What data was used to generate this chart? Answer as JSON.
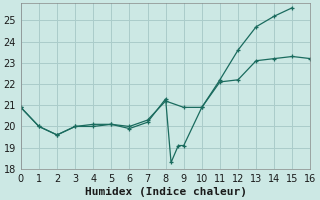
{
  "xlabel": "Humidex (Indice chaleur)",
  "background_color": "#cce8e4",
  "grid_color": "#aaccca",
  "line_color": "#1a6b5e",
  "line1_x": [
    0,
    1,
    2,
    3,
    4,
    5,
    6,
    7,
    8,
    8.3,
    8.7,
    9,
    10,
    11,
    12,
    13,
    14,
    15,
    16
  ],
  "line1_y": [
    20.9,
    20.0,
    19.6,
    20.0,
    20.0,
    20.1,
    19.9,
    20.2,
    21.3,
    18.3,
    19.1,
    19.1,
    20.9,
    22.1,
    22.2,
    23.1,
    23.2,
    23.3,
    23.2
  ],
  "line2_x": [
    0,
    1,
    2,
    3,
    4,
    5,
    6,
    7,
    8,
    9,
    10,
    11,
    12,
    13,
    14,
    15
  ],
  "line2_y": [
    20.9,
    20.0,
    19.6,
    20.0,
    20.1,
    20.1,
    20.0,
    20.3,
    21.2,
    20.9,
    20.9,
    22.2,
    23.6,
    24.7,
    25.2,
    25.6
  ],
  "xlim": [
    0,
    16
  ],
  "ylim": [
    18.0,
    25.8
  ],
  "yticks": [
    18,
    19,
    20,
    21,
    22,
    23,
    24,
    25
  ],
  "xticks": [
    0,
    1,
    2,
    3,
    4,
    5,
    6,
    7,
    8,
    9,
    10,
    11,
    12,
    13,
    14,
    15,
    16
  ],
  "xlabel_fontsize": 8,
  "tick_fontsize": 7
}
